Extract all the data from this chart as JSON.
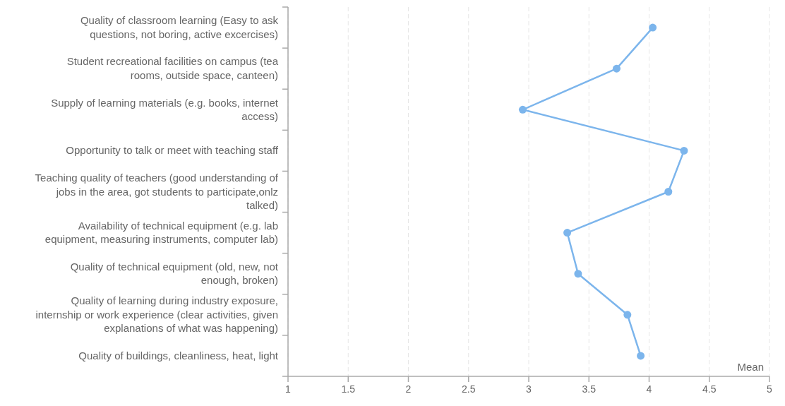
{
  "chart_data": {
    "type": "line",
    "orientation": "horizontal",
    "xlabel": "Mean",
    "categories": [
      "Quality of classroom learning (Easy to ask questions, not boring, active excercises)",
      "Student recreational facilities on campus (tea rooms, outside space, canteen)",
      "Supply of learning materials (e.g. books, internet access)",
      "Opportunity to talk or meet with teaching staff",
      "Teaching quality of teachers (good understanding of jobs in the area, got students to participate,onlz talked)",
      "Availability of technical equipment (e.g. lab equipment, measuring instruments, computer lab)",
      "Quality of technical equipment (old, new, not enough, broken)",
      "Quality of learning during industry exposure, internship or work experience (clear activities, given explanations of what was happening)",
      "Quality of buildings, cleanliness, heat, light"
    ],
    "series": [
      {
        "color": "#7cb5ec",
        "values": [
          4.03,
          3.73,
          2.95,
          4.29,
          4.16,
          3.32,
          3.41,
          3.82,
          3.93
        ]
      }
    ],
    "xlim": [
      1,
      5
    ],
    "xticks": [
      1,
      1.5,
      2,
      2.5,
      3,
      3.5,
      4,
      4.5,
      5
    ],
    "grid": "x",
    "marker": "circle",
    "line_style": "solid"
  }
}
